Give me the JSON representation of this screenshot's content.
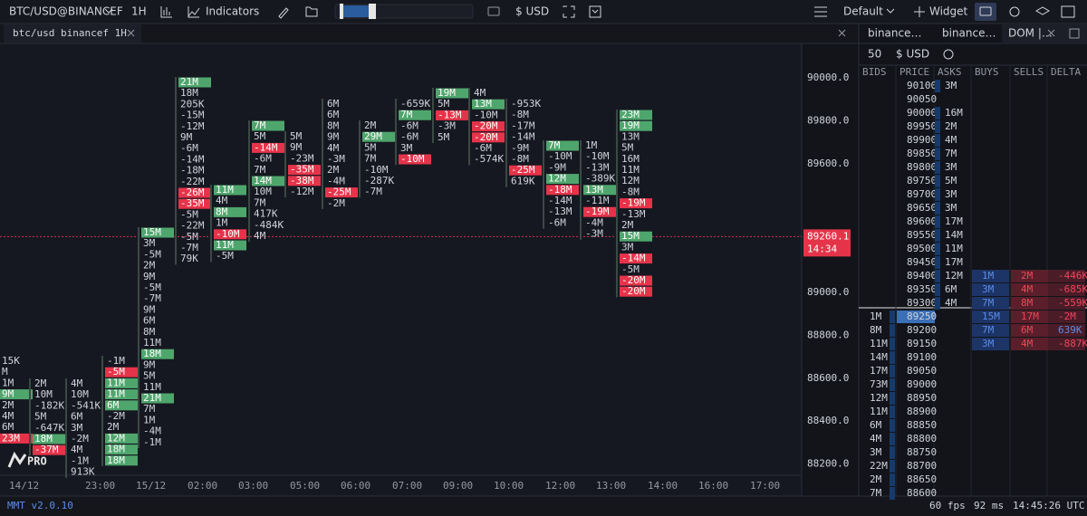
{
  "toolbar": {
    "symbol": "BTC/USD@BINANCEF",
    "interval": "1H",
    "indicators": "Indicators",
    "currency": "$ USD",
    "layout": "Default",
    "widget": "Widget"
  },
  "chart_tab": {
    "title": "btc/usd binancef 1H"
  },
  "chart": {
    "price_labels": [
      "90000.0",
      "89800.0",
      "89600.0",
      "89000.0",
      "88800.0",
      "88600.0",
      "88400.0",
      "88200.0"
    ],
    "current_price": "89260.1",
    "countdown": "14:34",
    "time_labels": [
      "14/12",
      "23:00",
      "15/12",
      "02:00",
      "03:00",
      "05:00",
      "06:00",
      "07:00",
      "09:00",
      "10:00",
      "12:00",
      "13:00",
      "14:00",
      "16:00",
      "17:00"
    ],
    "logo": "PRO",
    "footprint": [
      [
        [
          "15K",
          "n"
        ],
        [
          "M",
          "n"
        ],
        [
          "1M",
          "n"
        ],
        [
          "9M",
          "g"
        ],
        [
          "2M",
          "n"
        ],
        [
          "4M",
          "n"
        ],
        [
          "6M",
          "n"
        ],
        [
          "23M",
          "r"
        ]
      ],
      [
        [
          "2M",
          "n"
        ],
        [
          "10M",
          "n"
        ],
        [
          "-182K",
          "n"
        ],
        [
          "5M",
          "n"
        ],
        [
          "-647K",
          "n"
        ],
        [
          "18M",
          "g"
        ],
        [
          "-37M",
          "r"
        ]
      ],
      [
        [
          "4M",
          "n"
        ],
        [
          "10M",
          "n"
        ],
        [
          "-541K",
          "n"
        ],
        [
          "6M",
          "n"
        ],
        [
          "3M",
          "n"
        ],
        [
          "-2M",
          "n"
        ],
        [
          "4M",
          "n"
        ],
        [
          "-1M",
          "n"
        ],
        [
          "913K",
          "n"
        ]
      ],
      [
        [
          "-1M",
          "n"
        ],
        [
          "-5M",
          "r"
        ],
        [
          "11M",
          "g"
        ],
        [
          "11M",
          "g"
        ],
        [
          "6M",
          "g"
        ],
        [
          "-2M",
          "n"
        ],
        [
          "2M",
          "n"
        ],
        [
          "12M",
          "g"
        ],
        [
          "18M",
          "g"
        ],
        [
          "18M",
          "g"
        ]
      ],
      [
        [
          "15M",
          "g"
        ],
        [
          "3M",
          "n"
        ],
        [
          "-5M",
          "n"
        ],
        [
          "2M",
          "n"
        ],
        [
          "9M",
          "n"
        ],
        [
          "-5M",
          "n"
        ],
        [
          "-7M",
          "n"
        ],
        [
          "9M",
          "n"
        ],
        [
          "6M",
          "n"
        ],
        [
          "8M",
          "n"
        ],
        [
          "11M",
          "n"
        ],
        [
          "18M",
          "g"
        ],
        [
          "9M",
          "n"
        ],
        [
          "5M",
          "n"
        ],
        [
          "11M",
          "n"
        ],
        [
          "21M",
          "g"
        ],
        [
          "7M",
          "n"
        ],
        [
          "1M",
          "n"
        ],
        [
          "-4M",
          "n"
        ],
        [
          "-1M",
          "n"
        ]
      ],
      [
        [
          "21M",
          "g"
        ],
        [
          "18M",
          "n"
        ],
        [
          "205K",
          "n"
        ],
        [
          "-15M",
          "n"
        ],
        [
          "-12M",
          "n"
        ],
        [
          "9M",
          "n"
        ],
        [
          "-6M",
          "n"
        ],
        [
          "-14M",
          "n"
        ],
        [
          "-18M",
          "n"
        ],
        [
          "-22M",
          "n"
        ],
        [
          "-26M",
          "r"
        ],
        [
          "-35M",
          "r"
        ],
        [
          "-5M",
          "n"
        ],
        [
          "-22M",
          "n"
        ],
        [
          "-5M",
          "n"
        ],
        [
          "-7M",
          "n"
        ],
        [
          "79K",
          "n"
        ]
      ],
      [
        [
          "11M",
          "g"
        ],
        [
          "4M",
          "n"
        ],
        [
          "8M",
          "g"
        ],
        [
          "1M",
          "n"
        ],
        [
          "-10M",
          "r"
        ],
        [
          "11M",
          "g"
        ],
        [
          "-5M",
          "n"
        ]
      ],
      [
        [
          "7M",
          "g"
        ],
        [
          "5M",
          "n"
        ],
        [
          "-14M",
          "r"
        ],
        [
          "-6M",
          "n"
        ],
        [
          "7M",
          "n"
        ],
        [
          "14M",
          "g"
        ],
        [
          "10M",
          "n"
        ],
        [
          "7M",
          "n"
        ],
        [
          "417K",
          "n"
        ],
        [
          "-484K",
          "n"
        ],
        [
          "4M",
          "n"
        ]
      ],
      [
        [
          "5M",
          "n"
        ],
        [
          "9M",
          "n"
        ],
        [
          "-23M",
          "n"
        ],
        [
          "-35M",
          "r"
        ],
        [
          "-38M",
          "r"
        ],
        [
          "-12M",
          "n"
        ]
      ],
      [
        [
          "6M",
          "n"
        ],
        [
          "6M",
          "n"
        ],
        [
          "8M",
          "n"
        ],
        [
          "9M",
          "n"
        ],
        [
          "4M",
          "n"
        ],
        [
          "-3M",
          "n"
        ],
        [
          "2M",
          "n"
        ],
        [
          "-4M",
          "n"
        ],
        [
          "-25M",
          "r"
        ],
        [
          "-2M",
          "n"
        ]
      ],
      [
        [
          "2M",
          "n"
        ],
        [
          "29M",
          "g"
        ],
        [
          "5M",
          "n"
        ],
        [
          "7M",
          "n"
        ],
        [
          "-10M",
          "n"
        ],
        [
          "-287K",
          "n"
        ],
        [
          "-7M",
          "n"
        ]
      ],
      [
        [
          "-659K",
          "n"
        ],
        [
          "7M",
          "g"
        ],
        [
          "-6M",
          "n"
        ],
        [
          "-6M",
          "n"
        ],
        [
          "3M",
          "n"
        ],
        [
          "-10M",
          "r"
        ]
      ],
      [
        [
          "19M",
          "g"
        ],
        [
          "5M",
          "n"
        ],
        [
          "-13M",
          "r"
        ],
        [
          "-3M",
          "n"
        ],
        [
          "5M",
          "n"
        ]
      ],
      [
        [
          "4M",
          "n"
        ],
        [
          "13M",
          "g"
        ],
        [
          "-10M",
          "n"
        ],
        [
          "-20M",
          "r"
        ],
        [
          "-20M",
          "r"
        ],
        [
          "-6M",
          "n"
        ],
        [
          "-574K",
          "n"
        ]
      ],
      [
        [
          "-953K",
          "n"
        ],
        [
          "-8M",
          "n"
        ],
        [
          "-17M",
          "n"
        ],
        [
          "-14M",
          "n"
        ],
        [
          "-9M",
          "n"
        ],
        [
          "-8M",
          "n"
        ],
        [
          "-25M",
          "r"
        ],
        [
          "619K",
          "n"
        ]
      ],
      [
        [
          "7M",
          "g"
        ],
        [
          "-10M",
          "n"
        ],
        [
          "-9M",
          "n"
        ],
        [
          "12M",
          "g"
        ],
        [
          "-18M",
          "r"
        ],
        [
          "-14M",
          "n"
        ],
        [
          "-13M",
          "n"
        ],
        [
          "-6M",
          "n"
        ]
      ],
      [
        [
          "1M",
          "n"
        ],
        [
          "-10M",
          "n"
        ],
        [
          "-13M",
          "n"
        ],
        [
          "-389K",
          "n"
        ],
        [
          "13M",
          "g"
        ],
        [
          "-11M",
          "n"
        ],
        [
          "-19M",
          "r"
        ],
        [
          "-4M",
          "n"
        ],
        [
          "-3M",
          "n"
        ]
      ],
      [
        [
          "23M",
          "g"
        ],
        [
          "19M",
          "g"
        ],
        [
          "13M",
          "n"
        ],
        [
          "5M",
          "n"
        ],
        [
          "16M",
          "n"
        ],
        [
          "11M",
          "n"
        ],
        [
          "12M",
          "n"
        ],
        [
          "-8M",
          "n"
        ],
        [
          "-19M",
          "r"
        ],
        [
          "-13M",
          "n"
        ],
        [
          "2M",
          "n"
        ],
        [
          "15M",
          "g"
        ],
        [
          "3M",
          "n"
        ],
        [
          "-14M",
          "r"
        ],
        [
          "-5M",
          "n"
        ],
        [
          "-20M",
          "r"
        ],
        [
          "-20M",
          "r"
        ]
      ]
    ]
  },
  "dom_panel": {
    "tabs": [
      "binance…",
      "binance…",
      "DOM |…"
    ],
    "depth": "50",
    "currency": "$ USD",
    "columns": [
      "BIDS",
      "PRICE",
      "ASKS",
      "BUYS",
      "SELLS",
      "DELTA"
    ],
    "rows": [
      [
        null,
        "90100",
        "3M",
        null,
        null,
        null
      ],
      [
        null,
        "90050",
        null,
        null,
        null,
        null
      ],
      [
        null,
        "90000",
        "16M",
        null,
        null,
        null
      ],
      [
        null,
        "89950",
        "2M",
        null,
        null,
        null
      ],
      [
        null,
        "89900",
        "4M",
        null,
        null,
        null
      ],
      [
        null,
        "89850",
        "7M",
        null,
        null,
        null
      ],
      [
        null,
        "89800",
        "3M",
        null,
        null,
        null
      ],
      [
        null,
        "89750",
        "5M",
        null,
        null,
        null
      ],
      [
        null,
        "89700",
        "3M",
        null,
        null,
        null
      ],
      [
        null,
        "89650",
        "3M",
        null,
        null,
        null
      ],
      [
        null,
        "89600",
        "17M",
        null,
        null,
        null
      ],
      [
        null,
        "89550",
        "14M",
        null,
        null,
        null
      ],
      [
        null,
        "89500",
        "11M",
        null,
        null,
        null
      ],
      [
        null,
        "89450",
        "17M",
        null,
        null,
        null
      ],
      [
        null,
        "89400",
        "12M",
        "1M",
        "2M",
        "-446K"
      ],
      [
        null,
        "89350",
        "6M",
        "3M",
        "4M",
        "-685K"
      ],
      [
        null,
        "89300",
        "4M",
        "7M",
        "8M",
        "-559K"
      ],
      [
        "1M",
        "89250",
        null,
        "15M",
        "17M",
        "-2M"
      ],
      [
        "8M",
        "89200",
        null,
        "7M",
        "6M",
        "639K"
      ],
      [
        "11M",
        "89150",
        null,
        "3M",
        "4M",
        "-887K"
      ],
      [
        "14M",
        "89100",
        null,
        null,
        null,
        null
      ],
      [
        "17M",
        "89050",
        null,
        null,
        null,
        null
      ],
      [
        "73M",
        "89000",
        null,
        null,
        null,
        null
      ],
      [
        "12M",
        "88950",
        null,
        null,
        null,
        null
      ],
      [
        "11M",
        "88900",
        null,
        null,
        null,
        null
      ],
      [
        "6M",
        "88850",
        null,
        null,
        null,
        null
      ],
      [
        "4M",
        "88800",
        null,
        null,
        null,
        null
      ],
      [
        "3M",
        "88750",
        null,
        null,
        null,
        null
      ],
      [
        "22M",
        "88700",
        null,
        null,
        null,
        null
      ],
      [
        "2M",
        "88650",
        null,
        null,
        null,
        null
      ],
      [
        "7M",
        "88600",
        null,
        null,
        null,
        null
      ]
    ]
  },
  "footer": {
    "version": "MMT v2.0.10",
    "fps": "60 fps",
    "latency": "92 ms",
    "clock": "14:45:26 UTC"
  }
}
